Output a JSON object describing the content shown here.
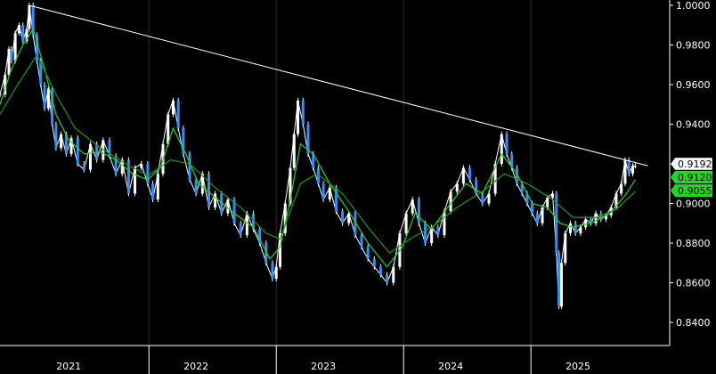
{
  "chart_data": {
    "type": "line",
    "title": "",
    "xlabel": "",
    "ylabel": "",
    "ylim": [
      0.8317,
      1.0
    ],
    "yticks": [
      0.84,
      0.86,
      0.88,
      0.9,
      0.92,
      0.94,
      0.96,
      0.98,
      1.0
    ],
    "ytick_labels": [
      "0.8400",
      "0.8600",
      "0.8800",
      "0.9000",
      "0.9200",
      "0.9400",
      "0.9600",
      "0.9800",
      "1.0000"
    ],
    "x_axis_labels": [
      "2021",
      "2022",
      "2023",
      "2024",
      "2025"
    ],
    "x_axis_label_x": [
      2021.0,
      2022.0,
      2023.0,
      2024.0,
      2025.0
    ],
    "year_dividers": [
      2021.63,
      2022.63,
      2023.63,
      2024.63
    ],
    "xlim": [
      2020.46,
      2025.72
    ],
    "grid": false,
    "series": [
      {
        "name": "",
        "style": "candles",
        "color": "#2f8fff",
        "points": [
          [
            2020.46,
            0.955
          ],
          [
            2020.5,
            0.965
          ],
          [
            2020.53,
            0.978
          ],
          [
            2020.55,
            0.972
          ],
          [
            2020.58,
            0.986
          ],
          [
            2020.61,
            0.99
          ],
          [
            2020.64,
            0.982
          ],
          [
            2020.67,
            0.988
          ],
          [
            2020.69,
            1.0
          ],
          [
            2020.72,
            0.985
          ],
          [
            2020.75,
            0.972
          ],
          [
            2020.78,
            0.96
          ],
          [
            2020.81,
            0.948
          ],
          [
            2020.84,
            0.958
          ],
          [
            2020.87,
            0.94
          ],
          [
            2020.9,
            0.928
          ],
          [
            2020.94,
            0.935
          ],
          [
            2020.98,
            0.925
          ],
          [
            2021.02,
            0.933
          ],
          [
            2021.07,
            0.92
          ],
          [
            2021.12,
            0.917
          ],
          [
            2021.17,
            0.93
          ],
          [
            2021.22,
            0.922
          ],
          [
            2021.27,
            0.932
          ],
          [
            2021.32,
            0.924
          ],
          [
            2021.37,
            0.915
          ],
          [
            2021.42,
            0.922
          ],
          [
            2021.47,
            0.905
          ],
          [
            2021.52,
            0.918
          ],
          [
            2021.57,
            0.92
          ],
          [
            2021.62,
            0.91
          ],
          [
            2021.66,
            0.902
          ],
          [
            2021.7,
            0.915
          ],
          [
            2021.74,
            0.93
          ],
          [
            2021.78,
            0.945
          ],
          [
            2021.82,
            0.952
          ],
          [
            2021.86,
            0.938
          ],
          [
            2021.9,
            0.925
          ],
          [
            2021.95,
            0.912
          ],
          [
            2022.0,
            0.905
          ],
          [
            2022.05,
            0.915
          ],
          [
            2022.1,
            0.898
          ],
          [
            2022.15,
            0.905
          ],
          [
            2022.2,
            0.895
          ],
          [
            2022.25,
            0.902
          ],
          [
            2022.3,
            0.89
          ],
          [
            2022.35,
            0.884
          ],
          [
            2022.4,
            0.895
          ],
          [
            2022.45,
            0.887
          ],
          [
            2022.5,
            0.88
          ],
          [
            2022.55,
            0.87
          ],
          [
            2022.6,
            0.862
          ],
          [
            2022.63,
            0.868
          ],
          [
            2022.66,
            0.885
          ],
          [
            2022.7,
            0.9
          ],
          [
            2022.74,
            0.918
          ],
          [
            2022.77,
            0.935
          ],
          [
            2022.8,
            0.952
          ],
          [
            2022.84,
            0.94
          ],
          [
            2022.88,
            0.925
          ],
          [
            2022.92,
            0.918
          ],
          [
            2022.96,
            0.91
          ],
          [
            2023.0,
            0.902
          ],
          [
            2023.05,
            0.908
          ],
          [
            2023.1,
            0.896
          ],
          [
            2023.15,
            0.89
          ],
          [
            2023.2,
            0.895
          ],
          [
            2023.25,
            0.884
          ],
          [
            2023.3,
            0.878
          ],
          [
            2023.35,
            0.872
          ],
          [
            2023.4,
            0.868
          ],
          [
            2023.45,
            0.864
          ],
          [
            2023.5,
            0.86
          ],
          [
            2023.55,
            0.868
          ],
          [
            2023.6,
            0.885
          ],
          [
            2023.65,
            0.895
          ],
          [
            2023.7,
            0.902
          ],
          [
            2023.75,
            0.89
          ],
          [
            2023.8,
            0.88
          ],
          [
            2023.85,
            0.888
          ],
          [
            2023.9,
            0.884
          ],
          [
            2023.95,
            0.896
          ],
          [
            2024.0,
            0.906
          ],
          [
            2024.05,
            0.91
          ],
          [
            2024.1,
            0.918
          ],
          [
            2024.15,
            0.912
          ],
          [
            2024.2,
            0.905
          ],
          [
            2024.25,
            0.9
          ],
          [
            2024.3,
            0.905
          ],
          [
            2024.35,
            0.92
          ],
          [
            2024.4,
            0.935
          ],
          [
            2024.44,
            0.925
          ],
          [
            2024.48,
            0.918
          ],
          [
            2024.52,
            0.91
          ],
          [
            2024.56,
            0.905
          ],
          [
            2024.6,
            0.9
          ],
          [
            2024.64,
            0.895
          ],
          [
            2024.68,
            0.89
          ],
          [
            2024.72,
            0.898
          ],
          [
            2024.76,
            0.903
          ],
          [
            2024.8,
            0.905
          ],
          [
            2024.83,
            0.875
          ],
          [
            2024.85,
            0.848
          ],
          [
            2024.87,
            0.87
          ],
          [
            2024.9,
            0.885
          ],
          [
            2024.94,
            0.89
          ],
          [
            2024.98,
            0.885
          ],
          [
            2025.02,
            0.888
          ],
          [
            2025.06,
            0.892
          ],
          [
            2025.1,
            0.89
          ],
          [
            2025.14,
            0.895
          ],
          [
            2025.18,
            0.892
          ],
          [
            2025.22,
            0.894
          ],
          [
            2025.26,
            0.898
          ],
          [
            2025.3,
            0.905
          ],
          [
            2025.34,
            0.91
          ],
          [
            2025.37,
            0.922
          ],
          [
            2025.4,
            0.915
          ],
          [
            2025.43,
            0.919
          ],
          [
            2025.45,
            0.919
          ]
        ]
      },
      {
        "name": "",
        "style": "line",
        "color": "#22d622",
        "points": [
          [
            2020.46,
            0.95
          ],
          [
            2020.55,
            0.968
          ],
          [
            2020.64,
            0.98
          ],
          [
            2020.72,
            0.988
          ],
          [
            2020.81,
            0.968
          ],
          [
            2020.9,
            0.945
          ],
          [
            2021.0,
            0.932
          ],
          [
            2021.12,
            0.925
          ],
          [
            2021.25,
            0.926
          ],
          [
            2021.37,
            0.922
          ],
          [
            2021.5,
            0.915
          ],
          [
            2021.62,
            0.912
          ],
          [
            2021.72,
            0.918
          ],
          [
            2021.82,
            0.938
          ],
          [
            2021.92,
            0.925
          ],
          [
            2022.02,
            0.91
          ],
          [
            2022.15,
            0.903
          ],
          [
            2022.3,
            0.895
          ],
          [
            2022.45,
            0.888
          ],
          [
            2022.58,
            0.872
          ],
          [
            2022.66,
            0.878
          ],
          [
            2022.74,
            0.902
          ],
          [
            2022.82,
            0.93
          ],
          [
            2022.92,
            0.925
          ],
          [
            2023.05,
            0.91
          ],
          [
            2023.2,
            0.896
          ],
          [
            2023.35,
            0.88
          ],
          [
            2023.5,
            0.868
          ],
          [
            2023.62,
            0.878
          ],
          [
            2023.72,
            0.895
          ],
          [
            2023.85,
            0.887
          ],
          [
            2024.0,
            0.9
          ],
          [
            2024.12,
            0.91
          ],
          [
            2024.25,
            0.905
          ],
          [
            2024.4,
            0.925
          ],
          [
            2024.52,
            0.915
          ],
          [
            2024.64,
            0.9
          ],
          [
            2024.76,
            0.898
          ],
          [
            2024.86,
            0.89
          ],
          [
            2024.96,
            0.888
          ],
          [
            2025.1,
            0.89
          ],
          [
            2025.25,
            0.895
          ],
          [
            2025.38,
            0.905
          ],
          [
            2025.45,
            0.912
          ]
        ]
      },
      {
        "name": "",
        "style": "line",
        "color": "#1a9a1a",
        "points": [
          [
            2020.46,
            0.945
          ],
          [
            2020.6,
            0.96
          ],
          [
            2020.75,
            0.975
          ],
          [
            2020.9,
            0.955
          ],
          [
            2021.05,
            0.938
          ],
          [
            2021.25,
            0.928
          ],
          [
            2021.45,
            0.92
          ],
          [
            2021.62,
            0.914
          ],
          [
            2021.8,
            0.922
          ],
          [
            2021.95,
            0.92
          ],
          [
            2022.15,
            0.908
          ],
          [
            2022.35,
            0.898
          ],
          [
            2022.55,
            0.885
          ],
          [
            2022.66,
            0.882
          ],
          [
            2022.82,
            0.91
          ],
          [
            2022.95,
            0.915
          ],
          [
            2023.15,
            0.905
          ],
          [
            2023.35,
            0.888
          ],
          [
            2023.52,
            0.875
          ],
          [
            2023.68,
            0.882
          ],
          [
            2023.85,
            0.888
          ],
          [
            2024.05,
            0.898
          ],
          [
            2024.25,
            0.906
          ],
          [
            2024.42,
            0.915
          ],
          [
            2024.6,
            0.91
          ],
          [
            2024.8,
            0.902
          ],
          [
            2024.96,
            0.893
          ],
          [
            2025.15,
            0.893
          ],
          [
            2025.3,
            0.897
          ],
          [
            2025.45,
            0.906
          ]
        ]
      },
      {
        "name": "",
        "style": "trendline",
        "color": "#ffffff",
        "points": [
          [
            2020.69,
            1.0
          ],
          [
            2025.55,
            0.919
          ]
        ]
      }
    ],
    "last_value_labels": [
      {
        "value": 0.9192,
        "text": "0.9192",
        "bg": "#ffffff",
        "fg": "#000000"
      },
      {
        "value": 0.912,
        "text": "0.9120",
        "bg": "#22d622",
        "fg": "#000000"
      },
      {
        "value": 0.9055,
        "text": "0.9055",
        "bg": "#22d622",
        "fg": "#000000"
      }
    ]
  }
}
